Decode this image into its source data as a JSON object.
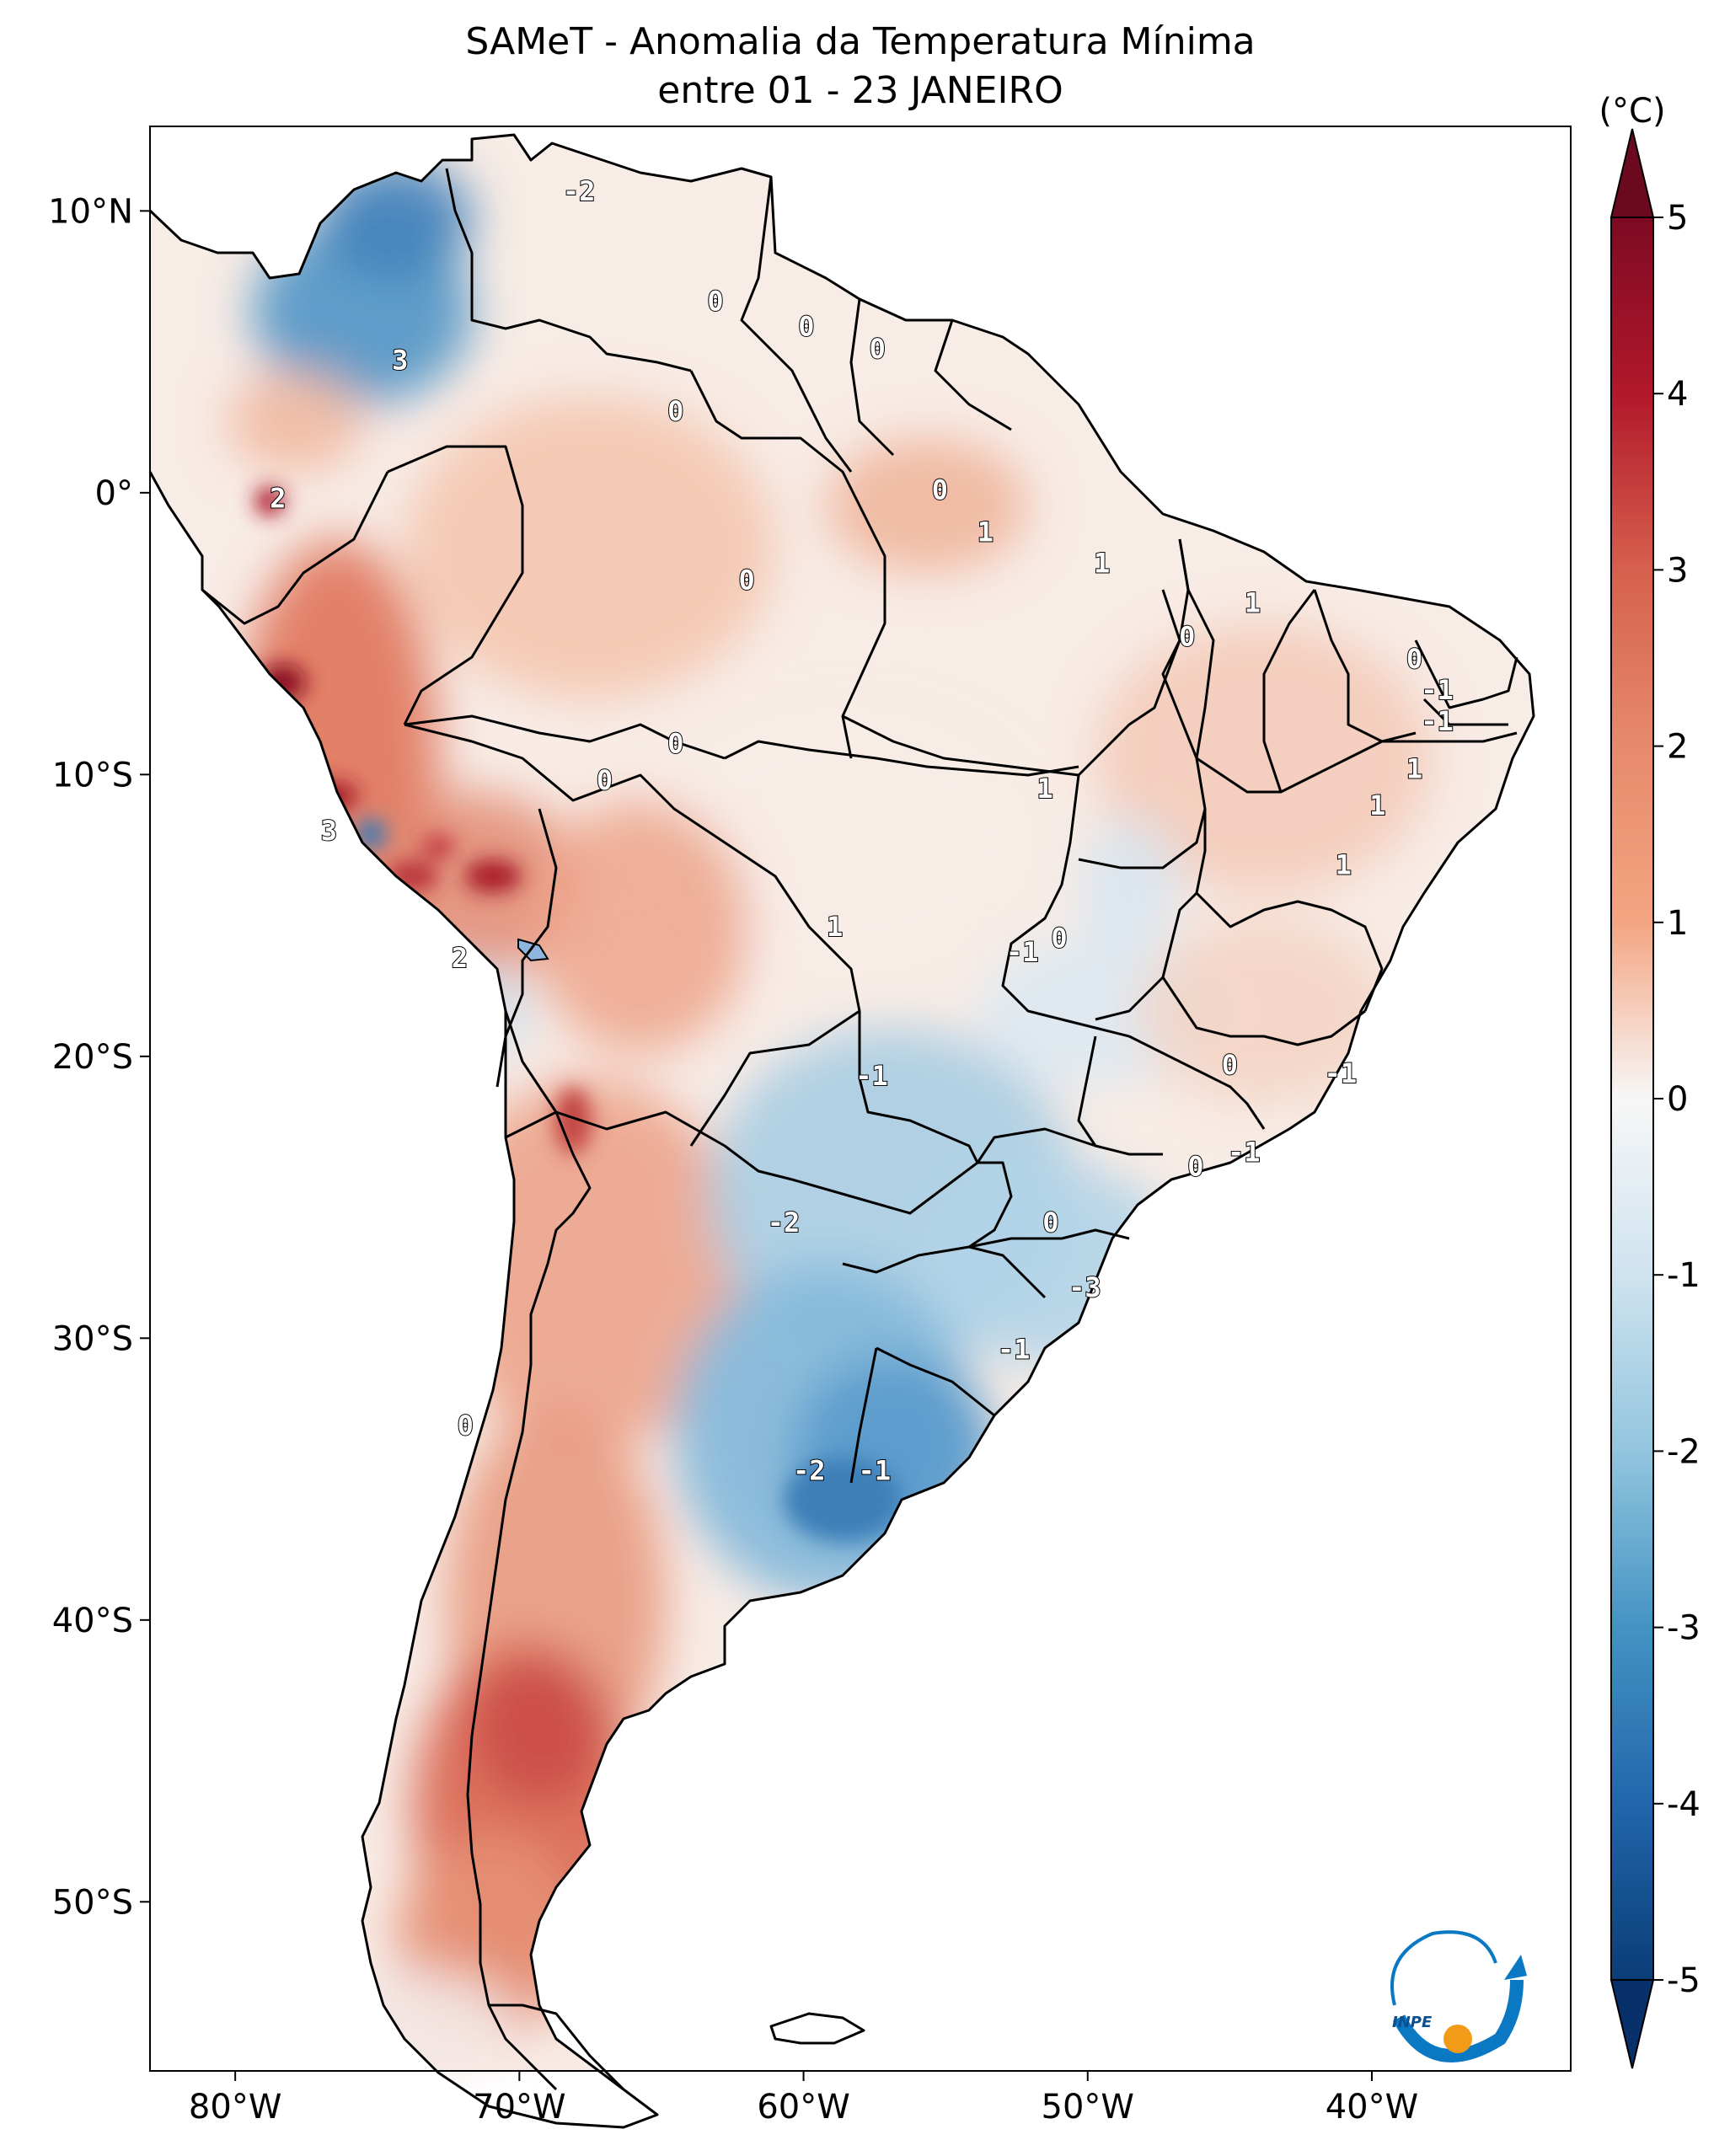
{
  "title": {
    "line1": "SAMeT - Anomalia da Temperatura Mínima",
    "line2": "entre 01 - 23 JANEIRO"
  },
  "map": {
    "lon_range": [
      -83,
      -33
    ],
    "lat_range": [
      -56,
      13
    ],
    "x_ticks": [
      {
        "value": -80,
        "label": "80°W"
      },
      {
        "value": -70,
        "label": "70°W"
      },
      {
        "value": -60,
        "label": "60°W"
      },
      {
        "value": -50,
        "label": "50°W"
      },
      {
        "value": -40,
        "label": "40°W"
      }
    ],
    "y_ticks": [
      {
        "value": 10,
        "label": "10°N"
      },
      {
        "value": 0,
        "label": "0°"
      },
      {
        "value": -10,
        "label": "10°S"
      },
      {
        "value": -20,
        "label": "20°S"
      },
      {
        "value": -30,
        "label": "30°S"
      },
      {
        "value": -40,
        "label": "40°S"
      },
      {
        "value": -50,
        "label": "50°S"
      }
    ],
    "contour_labels": [
      {
        "text": "-2",
        "lon": -67.9,
        "lat": 10.7
      },
      {
        "text": "0",
        "lon": -63.1,
        "lat": 6.8
      },
      {
        "text": "0",
        "lon": -59.9,
        "lat": 5.9
      },
      {
        "text": "0",
        "lon": -57.4,
        "lat": 5.1
      },
      {
        "text": "3",
        "lon": -74.2,
        "lat": 4.7
      },
      {
        "text": "0",
        "lon": -64.5,
        "lat": 2.9
      },
      {
        "text": "2",
        "lon": -78.5,
        "lat": -0.2
      },
      {
        "text": "0",
        "lon": -55.2,
        "lat": 0.1
      },
      {
        "text": "1",
        "lon": -53.6,
        "lat": -1.4
      },
      {
        "text": "1",
        "lon": -49.5,
        "lat": -2.5
      },
      {
        "text": "0",
        "lon": -62.0,
        "lat": -3.1
      },
      {
        "text": "1",
        "lon": -44.2,
        "lat": -3.9
      },
      {
        "text": "0",
        "lon": -46.5,
        "lat": -5.1
      },
      {
        "text": "0",
        "lon": -38.5,
        "lat": -5.9
      },
      {
        "text": "-1",
        "lon": -37.7,
        "lat": -7.0
      },
      {
        "text": "-1",
        "lon": -37.7,
        "lat": -8.1
      },
      {
        "text": "0",
        "lon": -64.5,
        "lat": -8.9
      },
      {
        "text": "0",
        "lon": -67.0,
        "lat": -10.2
      },
      {
        "text": "1",
        "lon": -38.5,
        "lat": -9.8
      },
      {
        "text": "1",
        "lon": -51.5,
        "lat": -10.5
      },
      {
        "text": "1",
        "lon": -39.8,
        "lat": -11.1
      },
      {
        "text": "3",
        "lon": -76.7,
        "lat": -12.0
      },
      {
        "text": "1",
        "lon": -41.0,
        "lat": -13.2
      },
      {
        "text": "1",
        "lon": -58.9,
        "lat": -15.4
      },
      {
        "text": "0",
        "lon": -51.0,
        "lat": -15.8
      },
      {
        "text": "-1",
        "lon": -52.3,
        "lat": -16.3
      },
      {
        "text": "2",
        "lon": -72.1,
        "lat": -16.5
      },
      {
        "text": "0",
        "lon": -45.0,
        "lat": -20.3
      },
      {
        "text": "-1",
        "lon": -57.6,
        "lat": -20.7
      },
      {
        "text": "-1",
        "lon": -41.1,
        "lat": -20.6
      },
      {
        "text": "-1",
        "lon": -44.5,
        "lat": -23.4
      },
      {
        "text": "0",
        "lon": -46.2,
        "lat": -23.9
      },
      {
        "text": "-2",
        "lon": -60.7,
        "lat": -25.9
      },
      {
        "text": "0",
        "lon": -51.3,
        "lat": -25.9
      },
      {
        "text": "-3",
        "lon": -50.1,
        "lat": -28.2
      },
      {
        "text": "-1",
        "lon": -52.6,
        "lat": -30.4
      },
      {
        "text": "0",
        "lon": -71.9,
        "lat": -33.1
      },
      {
        "text": "-2",
        "lon": -59.8,
        "lat": -34.7
      },
      {
        "text": "-1",
        "lon": -57.5,
        "lat": -34.7
      }
    ]
  },
  "colorbar": {
    "unit": "(°C)",
    "range": [
      -5,
      5
    ],
    "ticks": [
      {
        "value": 5,
        "label": "5"
      },
      {
        "value": 4,
        "label": "4"
      },
      {
        "value": 3,
        "label": "3"
      },
      {
        "value": 2,
        "label": "2"
      },
      {
        "value": 1,
        "label": "1"
      },
      {
        "value": 0,
        "label": "0"
      },
      {
        "value": -1,
        "label": "-1"
      },
      {
        "value": -2,
        "label": "-2"
      },
      {
        "value": -3,
        "label": "-3"
      },
      {
        "value": -4,
        "label": "-4"
      },
      {
        "value": -5,
        "label": "-5"
      }
    ]
  },
  "logo": {
    "text": "INPE"
  },
  "colors": {
    "warm": "#e7987a",
    "warm_strong": "#c8454a",
    "warm_extreme": "#8b0f22",
    "neutral": "#f7f4f2",
    "cool": "#a9cfe4",
    "cool_strong": "#4e91c3",
    "logo_blue": "#0a78c2",
    "logo_orange": "#f29b19"
  }
}
